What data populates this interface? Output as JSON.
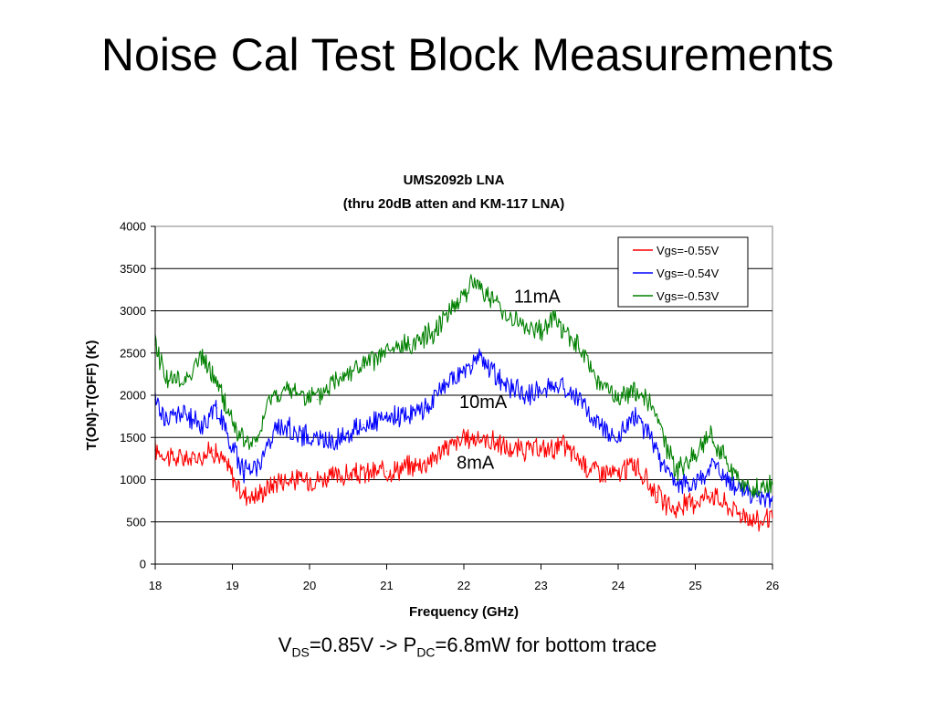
{
  "slide": {
    "title": "Noise Cal Test Block Measurements"
  },
  "caption": {
    "v_main": "V",
    "v_sub": "DS",
    "mid": "=0.85V -> P",
    "p_sub": "DC",
    "tail": "=6.8mW for bottom trace"
  },
  "chart_data": {
    "type": "line",
    "title": "UMS2092b LNA",
    "subtitle": "(thru 20dB atten and KM-117 LNA)",
    "xlabel": "Frequency (GHz)",
    "ylabel": "T(ON)-T(OFF) (K)",
    "xlim": [
      18,
      26
    ],
    "ylim": [
      0,
      4000
    ],
    "xticks": [
      18,
      19,
      20,
      21,
      22,
      23,
      24,
      25,
      26
    ],
    "yticks": [
      0,
      500,
      1000,
      1500,
      2000,
      2500,
      3000,
      3500,
      4000
    ],
    "grid": "horizontal",
    "legend_position": "top-right",
    "series": [
      {
        "name": "Vgs=-0.55V",
        "color": "#ff0000",
        "x": [
          18,
          18.25,
          18.5,
          18.75,
          18.95,
          19.1,
          19.3,
          19.6,
          20,
          20.5,
          21,
          21.5,
          21.8,
          22.1,
          22.4,
          22.6,
          23,
          23.3,
          23.6,
          24,
          24.2,
          24.35,
          24.5,
          24.6,
          24.75,
          25,
          25.2,
          25.4,
          25.6,
          25.8,
          26
        ],
        "values": [
          1350,
          1250,
          1250,
          1350,
          1150,
          850,
          800,
          1000,
          1000,
          1050,
          1100,
          1200,
          1400,
          1500,
          1450,
          1350,
          1350,
          1400,
          1150,
          1050,
          1200,
          1000,
          850,
          700,
          650,
          750,
          850,
          700,
          600,
          500,
          550
        ]
      },
      {
        "name": "Vgs=-0.54V",
        "color": "#0000ff",
        "x": [
          18,
          18.15,
          18.3,
          18.6,
          18.8,
          18.95,
          19.15,
          19.35,
          19.6,
          20,
          20.3,
          20.7,
          21,
          21.5,
          21.8,
          22.1,
          22.2,
          22.5,
          22.8,
          23,
          23.2,
          23.5,
          23.7,
          24,
          24.2,
          24.4,
          24.55,
          24.75,
          25,
          25.25,
          25.45,
          25.6,
          25.8,
          26
        ],
        "values": [
          1950,
          1700,
          1800,
          1650,
          1850,
          1500,
          1100,
          1200,
          1650,
          1500,
          1450,
          1650,
          1700,
          1850,
          2150,
          2350,
          2450,
          2150,
          2000,
          2050,
          2150,
          1950,
          1700,
          1500,
          1750,
          1550,
          1200,
          950,
          950,
          1200,
          950,
          900,
          750,
          800
        ]
      },
      {
        "name": "Vgs=-0.53V",
        "color": "#008000",
        "x": [
          18,
          18.15,
          18.35,
          18.6,
          18.8,
          18.95,
          19.1,
          19.3,
          19.5,
          19.8,
          20.1,
          20.4,
          20.7,
          21,
          21.3,
          21.6,
          21.8,
          22,
          22.15,
          22.3,
          22.5,
          22.8,
          23,
          23.15,
          23.3,
          23.5,
          23.75,
          24,
          24.2,
          24.35,
          24.55,
          24.75,
          25,
          25.2,
          25.35,
          25.55,
          25.75,
          26
        ],
        "values": [
          2600,
          2200,
          2150,
          2450,
          2150,
          1800,
          1500,
          1400,
          2000,
          2050,
          1950,
          2250,
          2350,
          2500,
          2600,
          2750,
          3000,
          3200,
          3350,
          3200,
          3000,
          2800,
          2750,
          2950,
          2750,
          2550,
          2150,
          1950,
          2050,
          2000,
          1600,
          1100,
          1300,
          1550,
          1300,
          1000,
          850,
          950
        ]
      }
    ],
    "annotations": [
      {
        "text": "11mA",
        "x": 22.95,
        "y": 3100
      },
      {
        "text": "10mA",
        "x": 22.25,
        "y": 1850
      },
      {
        "text": "8mA",
        "x": 22.15,
        "y": 1130
      }
    ]
  }
}
